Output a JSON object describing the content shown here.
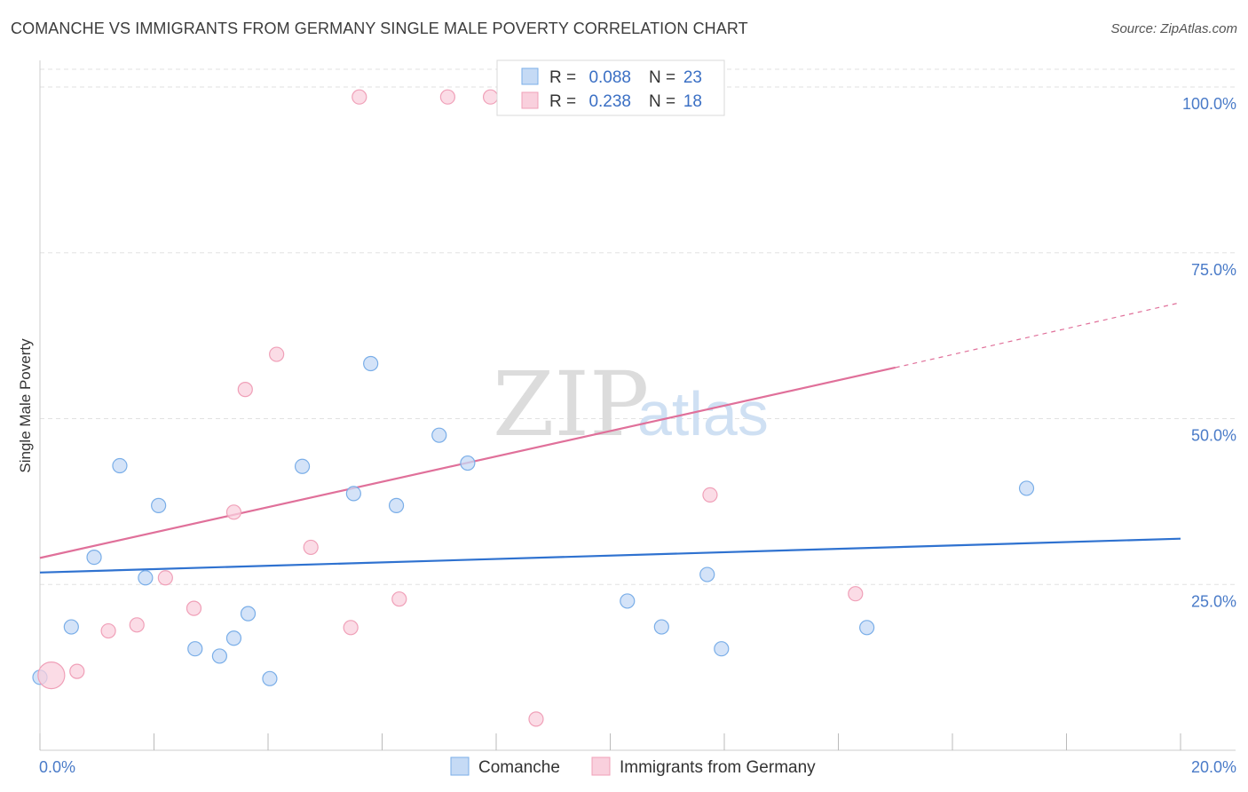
{
  "title": "COMANCHE VS IMMIGRANTS FROM GERMANY SINGLE MALE POVERTY CORRELATION CHART",
  "source": "Source: ZipAtlas.com",
  "watermark": {
    "zip": "ZIP",
    "atlas": "atlas"
  },
  "chart_data": {
    "type": "scatter",
    "title": "COMANCHE VS IMMIGRANTS FROM GERMANY SINGLE MALE POVERTY CORRELATION CHART",
    "xlabel": "",
    "ylabel": "Single Male Poverty",
    "xlim": [
      0,
      20
    ],
    "ylim": [
      0,
      100
    ],
    "x_ticks": [
      "0.0%",
      "20.0%"
    ],
    "y_ticks": [
      {
        "value": 25,
        "label": "25.0%"
      },
      {
        "value": 50,
        "label": "50.0%"
      },
      {
        "value": 75,
        "label": "75.0%"
      },
      {
        "value": 100,
        "label": "100.0%"
      }
    ],
    "grid": true,
    "legend_placement": "bottom",
    "series": [
      {
        "name": "Comanche",
        "color": "#7aaee8",
        "fill": "#c5daf5",
        "line_color": "#2f72d0",
        "stats": {
          "r_label": "R =",
          "r": "0.088",
          "n_label": "N =",
          "n": "23"
        },
        "trend": {
          "x0": 0,
          "y0": 26.8,
          "x1": 20,
          "y1": 31.9
        },
        "points": [
          {
            "x": 0.0,
            "y": 11.0
          },
          {
            "x": 0.55,
            "y": 18.6
          },
          {
            "x": 0.95,
            "y": 29.1
          },
          {
            "x": 1.4,
            "y": 42.9
          },
          {
            "x": 1.85,
            "y": 26.0
          },
          {
            "x": 2.08,
            "y": 36.9
          },
          {
            "x": 2.72,
            "y": 15.3
          },
          {
            "x": 3.15,
            "y": 14.2
          },
          {
            "x": 3.4,
            "y": 16.9
          },
          {
            "x": 3.65,
            "y": 20.6
          },
          {
            "x": 4.03,
            "y": 10.8
          },
          {
            "x": 4.6,
            "y": 42.8
          },
          {
            "x": 5.5,
            "y": 38.7
          },
          {
            "x": 5.8,
            "y": 58.3
          },
          {
            "x": 6.25,
            "y": 36.9
          },
          {
            "x": 7.0,
            "y": 47.5
          },
          {
            "x": 7.5,
            "y": 43.3
          },
          {
            "x": 10.3,
            "y": 22.5
          },
          {
            "x": 10.9,
            "y": 18.6
          },
          {
            "x": 11.7,
            "y": 26.5
          },
          {
            "x": 11.95,
            "y": 15.3
          },
          {
            "x": 14.5,
            "y": 18.5
          },
          {
            "x": 17.3,
            "y": 39.5
          }
        ]
      },
      {
        "name": "Immigrants from Germany",
        "color": "#f0a0b8",
        "fill": "#f9d0dd",
        "line_color": "#e0709a",
        "stats": {
          "r_label": "R =",
          "r": "0.238",
          "n_label": "N =",
          "n": "18"
        },
        "trend": {
          "x0": 0,
          "y0": 29.0,
          "x1": 15.0,
          "y1": 57.7
        },
        "trend_dashed": {
          "x0": 15.0,
          "y0": 57.7,
          "x1": 20,
          "y1": 67.5
        },
        "points": [
          {
            "x": 0.2,
            "y": 11.3,
            "big": true
          },
          {
            "x": 0.65,
            "y": 11.9
          },
          {
            "x": 1.2,
            "y": 18.0
          },
          {
            "x": 1.7,
            "y": 18.9
          },
          {
            "x": 2.2,
            "y": 26.0
          },
          {
            "x": 2.7,
            "y": 21.4
          },
          {
            "x": 3.4,
            "y": 35.9
          },
          {
            "x": 3.6,
            "y": 54.4
          },
          {
            "x": 4.15,
            "y": 59.7
          },
          {
            "x": 4.75,
            "y": 30.6
          },
          {
            "x": 5.45,
            "y": 18.5
          },
          {
            "x": 5.6,
            "y": 98.5
          },
          {
            "x": 6.3,
            "y": 22.8
          },
          {
            "x": 7.15,
            "y": 98.5
          },
          {
            "x": 7.9,
            "y": 98.5
          },
          {
            "x": 8.7,
            "y": 4.7
          },
          {
            "x": 11.75,
            "y": 38.5
          },
          {
            "x": 14.3,
            "y": 23.6
          }
        ]
      }
    ]
  }
}
